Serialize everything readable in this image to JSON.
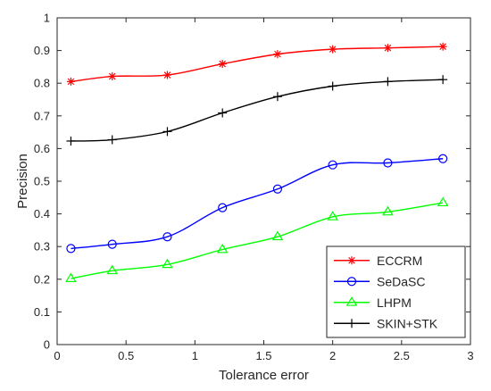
{
  "chart_data": {
    "type": "line",
    "title": "",
    "xlabel": "Tolerance error",
    "ylabel": "Precision",
    "xlim": [
      0,
      3
    ],
    "ylim": [
      0,
      1
    ],
    "xticks": [
      0,
      0.5,
      1,
      1.5,
      2,
      2.5,
      3
    ],
    "xtick_labels": [
      "0",
      "0.5",
      "1",
      "1.5",
      "2",
      "2.5",
      "3"
    ],
    "yticks": [
      0,
      0.1,
      0.2,
      0.3,
      0.4,
      0.5,
      0.6,
      0.7,
      0.8,
      0.9,
      1
    ],
    "ytick_labels": [
      "0",
      "0.1",
      "0.2",
      "0.3",
      "0.4",
      "0.5",
      "0.6",
      "0.7",
      "0.8",
      "0.9",
      "1"
    ],
    "grid": false,
    "legend_position": "bottom-right",
    "x": [
      0.1,
      0.4,
      0.8,
      1.2,
      1.6,
      2.0,
      2.4,
      2.8
    ],
    "series": [
      {
        "name": "ECCRM",
        "color": "#ff0000",
        "marker": "asterisk",
        "values": [
          0.805,
          0.821,
          0.825,
          0.859,
          0.889,
          0.904,
          0.908,
          0.912
        ]
      },
      {
        "name": "SeDaSC",
        "color": "#0000ff",
        "marker": "circle",
        "values": [
          0.294,
          0.307,
          0.33,
          0.419,
          0.476,
          0.55,
          0.556,
          0.569
        ]
      },
      {
        "name": "LHPM",
        "color": "#00ff00",
        "marker": "triangle",
        "values": [
          0.202,
          0.226,
          0.245,
          0.291,
          0.33,
          0.391,
          0.406,
          0.434
        ]
      },
      {
        "name": "SKIN+STK",
        "color": "#000000",
        "marker": "plus",
        "values": [
          0.623,
          0.627,
          0.652,
          0.709,
          0.759,
          0.791,
          0.805,
          0.811
        ]
      }
    ]
  }
}
